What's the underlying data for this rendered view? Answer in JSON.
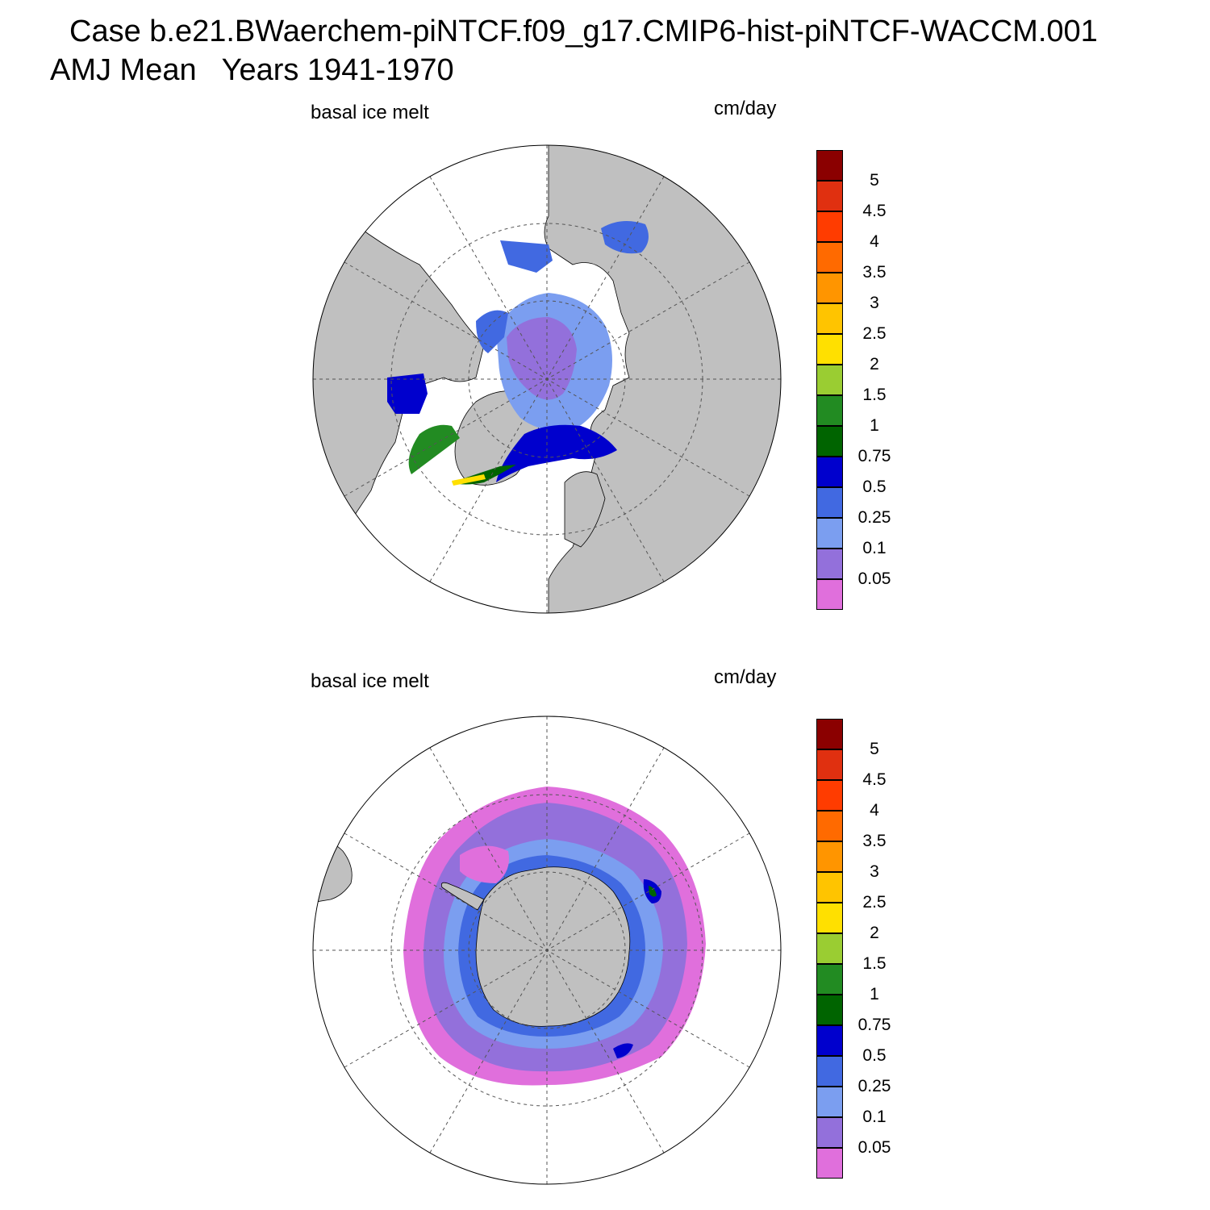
{
  "header": {
    "title_line1": "Case b.e21.BWaerchem-piNTCF.f09_g17.CMIP6-hist-piNTCF-WACCM.001",
    "title_line2": "AMJ Mean   Years 1941-1970"
  },
  "panels": [
    {
      "variable": "basal ice melt",
      "units": "cm/day",
      "hemisphere": "north"
    },
    {
      "variable": "basal ice melt",
      "units": "cm/day",
      "hemisphere": "south"
    }
  ],
  "colorbar": {
    "levels": [
      "0.05",
      "0.1",
      "0.25",
      "0.5",
      "0.75",
      "1",
      "1.5",
      "2",
      "2.5",
      "3",
      "3.5",
      "4",
      "4.5",
      "5"
    ],
    "colors_bottom_to_top": [
      "#e06fdc",
      "#9370db",
      "#7b9ef0",
      "#4169e1",
      "#0000cd",
      "#006400",
      "#228b22",
      "#9acd32",
      "#ffe000",
      "#ffc400",
      "#ff9500",
      "#ff6a00",
      "#ff3c00",
      "#e03010",
      "#8b0000"
    ]
  },
  "colors": {
    "land": "#c0c0c0",
    "ocean": "#ffffff",
    "graticule": "#555555"
  }
}
